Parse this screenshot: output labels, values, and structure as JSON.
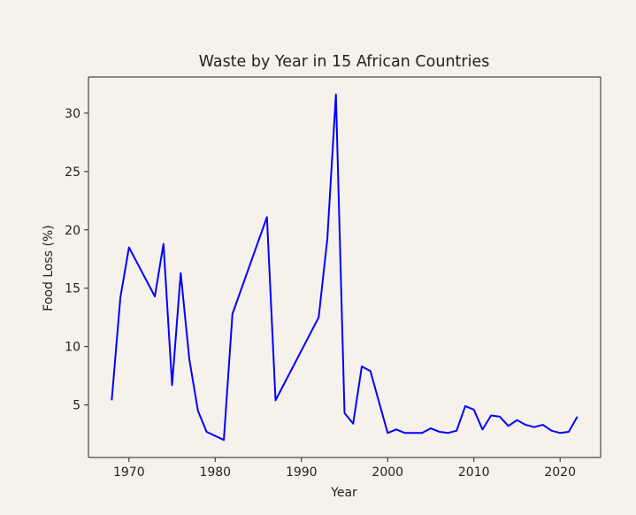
{
  "chart_data": {
    "type": "line",
    "title": "Waste by Year in 15 African Countries",
    "xlabel": "Year",
    "ylabel": "Food Loss (%)",
    "xlim": [
      1965.3,
      2024.7
    ],
    "ylim": [
      0.5,
      33.1
    ],
    "xticks": [
      1970,
      1980,
      1990,
      2000,
      2010,
      2020
    ],
    "yticks": [
      5,
      10,
      15,
      20,
      25,
      30
    ],
    "grid": false,
    "line_color": "#0000ff",
    "background_color": "#f6f1ea",
    "series": [
      {
        "x": [
          1968,
          1969,
          1970,
          1973,
          1974,
          1975,
          1976,
          1977,
          1978,
          1979,
          1981,
          1982,
          1986,
          1987,
          1992,
          1993,
          1994,
          1995,
          1996,
          1997,
          1998,
          2000,
          2001,
          2002,
          2003,
          2004,
          2005,
          2006,
          2007,
          2008,
          2009,
          2010,
          2011,
          2012,
          2013,
          2014,
          2015,
          2016,
          2017,
          2018,
          2019,
          2020,
          2021,
          2022
        ],
        "y": [
          5.4,
          14.2,
          18.5,
          14.3,
          18.8,
          6.7,
          16.3,
          8.9,
          4.5,
          2.7,
          2.0,
          12.8,
          21.1,
          5.4,
          12.5,
          19.2,
          31.6,
          4.3,
          3.4,
          8.3,
          7.9,
          2.6,
          2.9,
          2.6,
          2.6,
          2.6,
          3.0,
          2.7,
          2.6,
          2.8,
          4.9,
          4.6,
          2.9,
          4.1,
          4.0,
          3.2,
          3.7,
          3.3,
          3.1,
          3.3,
          2.8,
          2.6,
          2.7,
          4.0
        ]
      }
    ]
  }
}
